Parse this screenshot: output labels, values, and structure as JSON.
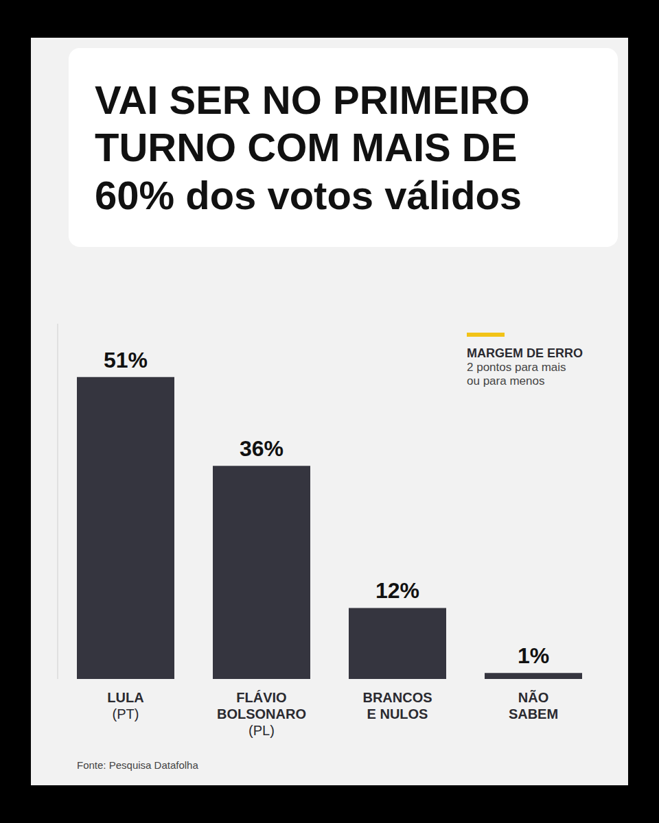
{
  "chart_data": {
    "type": "bar",
    "title": "VAI SER NO PRIMEIRO TURNO COM MAIS DE 60% dos votos válidos",
    "categories": [
      "LULA (PT)",
      "FLÁVIO BOLSONARO (PL)",
      "BRANCOS E NULOS",
      "NÃO SABEM"
    ],
    "values": [
      51,
      36,
      12,
      1
    ],
    "value_labels": [
      "51%",
      "36%",
      "12%",
      "1%"
    ],
    "color": "#35353f",
    "ylim": [
      0,
      60
    ],
    "data_labels": true,
    "tick_labels": "x",
    "annotation": {
      "title": "MARGEM DE ERRO",
      "text": "2 pontos para mais ou para menos"
    },
    "source": "Fonte: Pesquisa Datafolha"
  }
}
